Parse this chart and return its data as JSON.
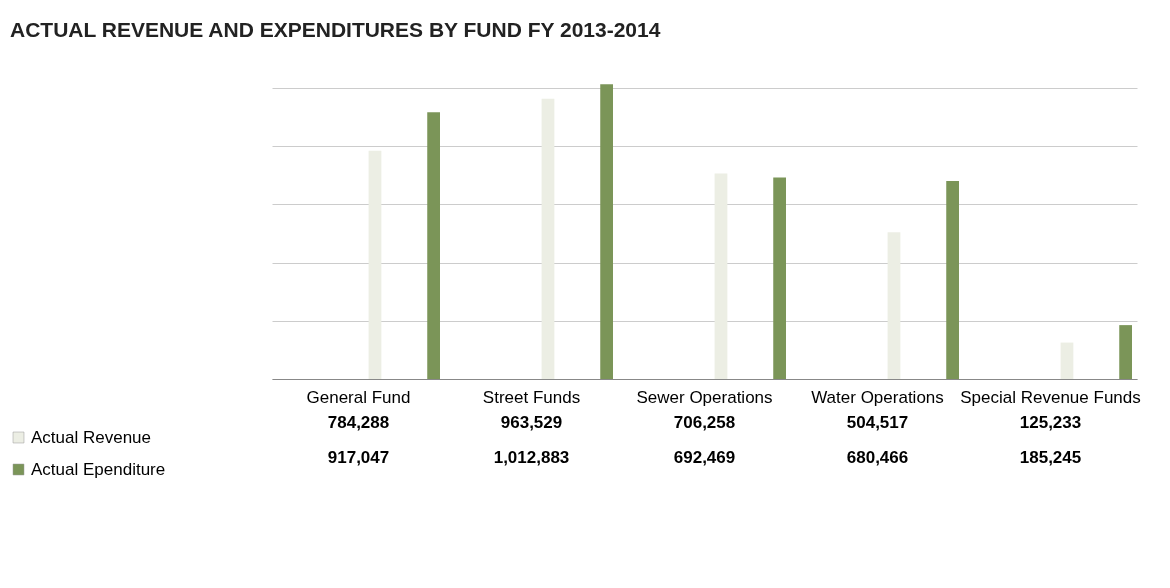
{
  "chart_data": {
    "type": "bar",
    "title": "ACTUAL REVENUE AND EXPENDITURES  BY FUND FY 2013-2014",
    "categories": [
      "General Fund",
      "Street Funds",
      "Sewer Operations",
      "Water Operations",
      "Special Revenue Funds"
    ],
    "series": [
      {
        "name": "Actual Revenue",
        "color": "#eceee4",
        "values": [
          784288,
          963529,
          706258,
          504517,
          125233
        ],
        "value_labels": [
          "784,288",
          "963,529",
          "706,258",
          "504,517",
          "125,233"
        ]
      },
      {
        "name": "Actual Ependiture",
        "color": "#7b9558",
        "values": [
          917047,
          1012883,
          692469,
          680466,
          185245
        ],
        "value_labels": [
          "917,047",
          "1,012,883",
          "692,469",
          "680,466",
          "185,245"
        ]
      }
    ],
    "grid": "y",
    "legend": "bottom left"
  }
}
